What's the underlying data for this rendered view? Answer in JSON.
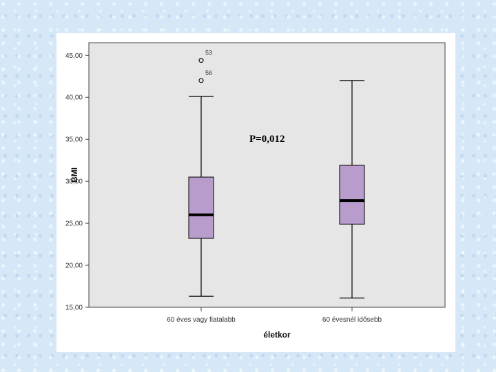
{
  "chart_data": {
    "type": "boxplot",
    "xlabel": "életkor",
    "ylabel": "BMI",
    "ylim": [
      15,
      46.5
    ],
    "yticks": [
      "15,00",
      "20,00",
      "25,00",
      "30,00",
      "35,00",
      "40,00",
      "45,00"
    ],
    "ytick_values": [
      15,
      20,
      25,
      30,
      35,
      40,
      45
    ],
    "annotation": "P=0,012",
    "grid": false,
    "colors": {
      "plot_bg": "#e6e6e6",
      "box_fill": "#b89ccc",
      "median": "#000000"
    },
    "categories": [
      "60 éves vagy fiatalabb",
      "60 évesnél idősebb"
    ],
    "boxes": [
      {
        "category": "60 éves vagy fiatalabb",
        "whisker_low": 16.3,
        "q1": 23.2,
        "median": 26.0,
        "q3": 30.5,
        "whisker_high": 40.1,
        "outliers": [
          {
            "value": 44.4,
            "label": "53"
          },
          {
            "value": 42.0,
            "label": "56"
          }
        ]
      },
      {
        "category": "60 évesnél idősebb",
        "whisker_low": 16.1,
        "q1": 24.9,
        "median": 27.7,
        "q3": 31.9,
        "whisker_high": 42.0,
        "outliers": []
      }
    ]
  }
}
